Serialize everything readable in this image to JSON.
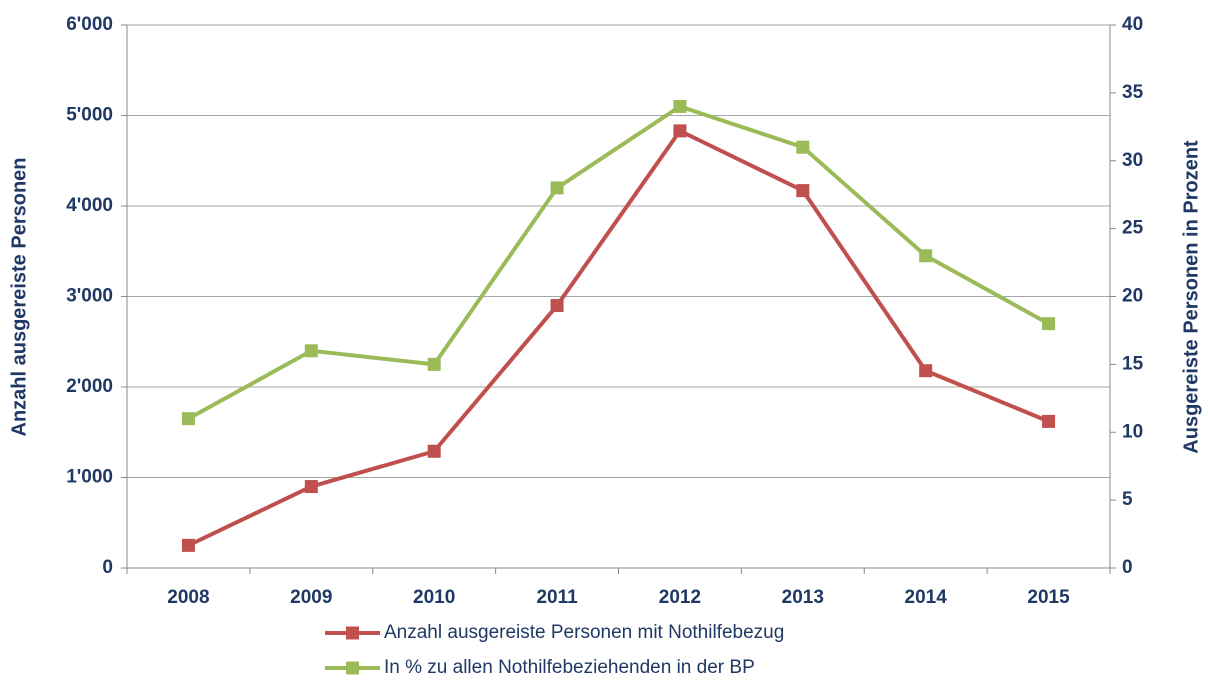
{
  "chart_data": {
    "type": "line",
    "categories": [
      "2008",
      "2009",
      "2010",
      "2011",
      "2012",
      "2013",
      "2014",
      "2015"
    ],
    "y_label": "Anzahl ausgereiste Personen",
    "y2_label": "Ausgereiste Personen in Prozent",
    "series": [
      {
        "name": "Anzahl ausgereiste Personen mit Nothilfebezug",
        "color": "#c0504d",
        "values": [
          250,
          900,
          1290,
          2900,
          4830,
          4170,
          2180,
          1620
        ]
      },
      {
        "name": "In % zu allen Nothilfebeziehenden in der BP",
        "color": "#9bbb59",
        "axis": "y2",
        "values": [
          11,
          16,
          15,
          28,
          34,
          31,
          23,
          18
        ]
      }
    ],
    "ylim": [
      0,
      6000
    ],
    "yticks": [
      {
        "value": 0,
        "label": "0"
      },
      {
        "value": 1000,
        "label": "1'000"
      },
      {
        "value": 2000,
        "label": "2'000"
      },
      {
        "value": 3000,
        "label": "3'000"
      },
      {
        "value": 4000,
        "label": "4'000"
      },
      {
        "value": 5000,
        "label": "5'000"
      },
      {
        "value": 6000,
        "label": "6'000"
      }
    ],
    "y2lim": [
      0,
      40
    ],
    "y2ticks": [
      0,
      5,
      10,
      15,
      20,
      25,
      30,
      35,
      40
    ],
    "grid": true,
    "legend": "bottom"
  }
}
